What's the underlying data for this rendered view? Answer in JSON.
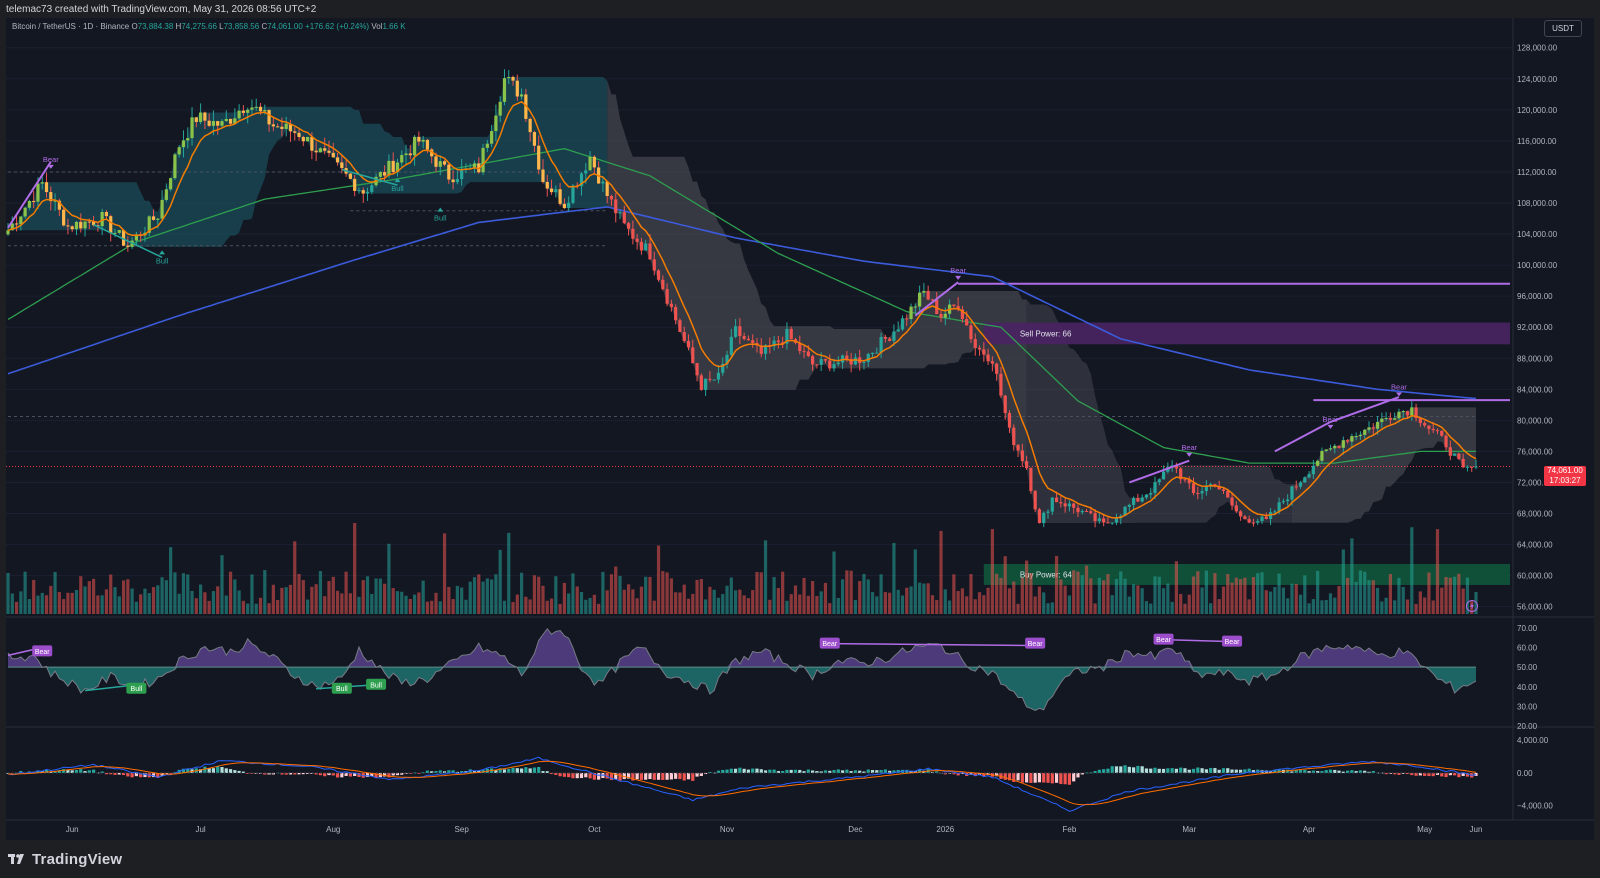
{
  "header": {
    "credit": "telemac73 created with TradingView.com, May 31, 2026 08:56 UTC+2",
    "symbol": "Bitcoin / TetherUS · 1D · Binance",
    "open_label": "O",
    "open": "73,884.38",
    "high_label": "H",
    "high": "74,275.66",
    "low_label": "L",
    "low": "73,858.56",
    "close_label": "C",
    "close": "74,061.00",
    "change": "+176.62 (+0.24%)",
    "volume_label": "Vol",
    "volume": "1.66 K",
    "currency": "USDT"
  },
  "price_tag": {
    "price": "74,061.00",
    "countdown": "17:03:27"
  },
  "brand": {
    "logo_text": "TradingView"
  },
  "colors": {
    "background": "#131722",
    "bull": "#26a69a",
    "bear": "#ef5350",
    "ema_fast": "#f57c00",
    "ma_mid": "#2e9e4f",
    "ma_slow": "#3b5bdb",
    "divergence": "#b06ce6",
    "cloud_bull": "#1b5e6b",
    "cloud_bear": "#4a4b55",
    "zone_sell": "#4a2363",
    "zone_buy": "#11573b"
  },
  "chart_data": [
    {
      "type": "candlestick",
      "title": "BTCUSDT 1D",
      "x_ticks": [
        "Jun",
        "Jul",
        "Aug",
        "Sep",
        "Oct",
        "Nov",
        "Dec",
        "2026",
        "Feb",
        "Mar",
        "Apr",
        "May",
        "Jun"
      ],
      "y_ticks": [
        "56,000.00",
        "60,000.00",
        "64,000.00",
        "68,000.00",
        "72,000.00",
        "76,000.00",
        "80,000.00",
        "84,000.00",
        "88,000.00",
        "92,000.00",
        "96,000.00",
        "100,000.00",
        "104,000.00",
        "108,000.00",
        "112,000.00",
        "116,000.00",
        "120,000.00",
        "124,000.00",
        "128,000.00"
      ],
      "ylim": [
        54800,
        130800
      ],
      "price_anchors": [
        {
          "t": 0,
          "p": 104500
        },
        {
          "t": 8,
          "p": 110500
        },
        {
          "t": 14,
          "p": 105000
        },
        {
          "t": 22,
          "p": 106000
        },
        {
          "t": 28,
          "p": 102500
        },
        {
          "t": 35,
          "p": 106500
        },
        {
          "t": 40,
          "p": 115500
        },
        {
          "t": 44,
          "p": 119000
        },
        {
          "t": 50,
          "p": 118000
        },
        {
          "t": 56,
          "p": 121000
        },
        {
          "t": 62,
          "p": 118000
        },
        {
          "t": 68,
          "p": 117000
        },
        {
          "t": 76,
          "p": 113000
        },
        {
          "t": 83,
          "p": 109500
        },
        {
          "t": 90,
          "p": 113000
        },
        {
          "t": 96,
          "p": 116000
        },
        {
          "t": 103,
          "p": 111500
        },
        {
          "t": 110,
          "p": 112500
        },
        {
          "t": 116,
          "p": 124000
        },
        {
          "t": 120,
          "p": 122000
        },
        {
          "t": 125,
          "p": 111000
        },
        {
          "t": 130,
          "p": 108000
        },
        {
          "t": 136,
          "p": 114000
        },
        {
          "t": 140,
          "p": 109000
        },
        {
          "t": 144,
          "p": 105000
        },
        {
          "t": 150,
          "p": 101500
        },
        {
          "t": 156,
          "p": 93000
        },
        {
          "t": 162,
          "p": 84500
        },
        {
          "t": 166,
          "p": 85500
        },
        {
          "t": 170,
          "p": 91500
        },
        {
          "t": 176,
          "p": 88500
        },
        {
          "t": 182,
          "p": 91000
        },
        {
          "t": 188,
          "p": 87200
        },
        {
          "t": 194,
          "p": 87500
        },
        {
          "t": 200,
          "p": 88000
        },
        {
          "t": 206,
          "p": 91000
        },
        {
          "t": 210,
          "p": 93500
        },
        {
          "t": 214,
          "p": 96500
        },
        {
          "t": 218,
          "p": 93500
        },
        {
          "t": 222,
          "p": 95000
        },
        {
          "t": 226,
          "p": 89500
        },
        {
          "t": 230,
          "p": 88000
        },
        {
          "t": 234,
          "p": 78500
        },
        {
          "t": 238,
          "p": 74000
        },
        {
          "t": 241,
          "p": 66500
        },
        {
          "t": 244,
          "p": 70000
        },
        {
          "t": 250,
          "p": 68500
        },
        {
          "t": 256,
          "p": 66500
        },
        {
          "t": 262,
          "p": 69000
        },
        {
          "t": 268,
          "p": 71500
        },
        {
          "t": 272,
          "p": 74500
        },
        {
          "t": 277,
          "p": 70500
        },
        {
          "t": 282,
          "p": 72000
        },
        {
          "t": 288,
          "p": 67500
        },
        {
          "t": 294,
          "p": 67000
        },
        {
          "t": 300,
          "p": 71000
        },
        {
          "t": 306,
          "p": 75000
        },
        {
          "t": 312,
          "p": 77500
        },
        {
          "t": 318,
          "p": 79000
        },
        {
          "t": 324,
          "p": 81000
        },
        {
          "t": 328,
          "p": 81500
        },
        {
          "t": 332,
          "p": 79000
        },
        {
          "t": 336,
          "p": 77000
        },
        {
          "t": 340,
          "p": 73500
        },
        {
          "t": 343,
          "p": 74061
        }
      ],
      "series": [
        {
          "name": "EMA (fast)",
          "color": "#f57c00"
        },
        {
          "name": "MA (mid)",
          "color": "#2e9e4f"
        },
        {
          "name": "MA (slow)",
          "color": "#3b5bdb"
        }
      ],
      "slow_ma": [
        {
          "t": 0,
          "p": 86000
        },
        {
          "t": 40,
          "p": 93500
        },
        {
          "t": 80,
          "p": 100500
        },
        {
          "t": 110,
          "p": 105500
        },
        {
          "t": 140,
          "p": 107500
        },
        {
          "t": 170,
          "p": 103500
        },
        {
          "t": 200,
          "p": 100500
        },
        {
          "t": 230,
          "p": 98500
        },
        {
          "t": 260,
          "p": 90500
        },
        {
          "t": 290,
          "p": 86500
        },
        {
          "t": 320,
          "p": 84000
        },
        {
          "t": 343,
          "p": 82800
        }
      ],
      "mid_ma": [
        {
          "t": 0,
          "p": 93000
        },
        {
          "t": 30,
          "p": 103000
        },
        {
          "t": 60,
          "p": 108500
        },
        {
          "t": 90,
          "p": 111000
        },
        {
          "t": 130,
          "p": 115000
        },
        {
          "t": 150,
          "p": 111500
        },
        {
          "t": 180,
          "p": 101500
        },
        {
          "t": 210,
          "p": 94000
        },
        {
          "t": 232,
          "p": 92000
        },
        {
          "t": 250,
          "p": 82500
        },
        {
          "t": 270,
          "p": 76500
        },
        {
          "t": 290,
          "p": 74500
        },
        {
          "t": 310,
          "p": 74500
        },
        {
          "t": 330,
          "p": 76000
        },
        {
          "t": 343,
          "p": 76000
        }
      ],
      "annotations": [
        {
          "text": "Bear",
          "t": 10,
          "p": 113300
        },
        {
          "text": "Bull",
          "t": 36,
          "p": 101000
        },
        {
          "text": "Bull",
          "t": 91,
          "p": 110300
        },
        {
          "text": "Bull",
          "t": 101,
          "p": 106500
        },
        {
          "text": "Bear",
          "t": 222,
          "p": 99000
        },
        {
          "text": "Bear",
          "t": 276,
          "p": 76200
        },
        {
          "text": "Bear",
          "t": 309,
          "p": 79800
        },
        {
          "text": "Bear",
          "t": 325,
          "p": 84000
        }
      ],
      "zones": [
        {
          "label": "Sell Power: 66",
          "from_t": 228,
          "low": 89800,
          "high": 92600
        },
        {
          "label": "Buy Power: 64",
          "from_t": 228,
          "low": 58800,
          "high": 61500
        }
      ],
      "levels": [
        {
          "p": 97600,
          "from_t": 222,
          "color": "#b06ce6"
        },
        {
          "p": 82600,
          "from_t": 305,
          "color": "#b06ce6"
        }
      ]
    },
    {
      "type": "area",
      "title": "RSI",
      "y_ticks": [
        "20.00",
        "30.00",
        "40.00",
        "50.00",
        "60.00",
        "70.00"
      ],
      "ylim": [
        20,
        73
      ],
      "midline": 50,
      "rsi_anchors": [
        {
          "t": 0,
          "v": 55
        },
        {
          "t": 6,
          "v": 56
        },
        {
          "t": 10,
          "v": 47
        },
        {
          "t": 18,
          "v": 38
        },
        {
          "t": 24,
          "v": 45
        },
        {
          "t": 30,
          "v": 40
        },
        {
          "t": 35,
          "v": 44
        },
        {
          "t": 40,
          "v": 53
        },
        {
          "t": 46,
          "v": 60
        },
        {
          "t": 52,
          "v": 58
        },
        {
          "t": 56,
          "v": 62
        },
        {
          "t": 62,
          "v": 55
        },
        {
          "t": 66,
          "v": 47
        },
        {
          "t": 72,
          "v": 40
        },
        {
          "t": 78,
          "v": 44
        },
        {
          "t": 82,
          "v": 59
        },
        {
          "t": 88,
          "v": 47
        },
        {
          "t": 92,
          "v": 42
        },
        {
          "t": 98,
          "v": 44
        },
        {
          "t": 104,
          "v": 52
        },
        {
          "t": 110,
          "v": 60
        },
        {
          "t": 116,
          "v": 55
        },
        {
          "t": 120,
          "v": 46
        },
        {
          "t": 126,
          "v": 69
        },
        {
          "t": 130,
          "v": 68
        },
        {
          "t": 134,
          "v": 50
        },
        {
          "t": 138,
          "v": 41
        },
        {
          "t": 144,
          "v": 54
        },
        {
          "t": 148,
          "v": 60
        },
        {
          "t": 154,
          "v": 47
        },
        {
          "t": 160,
          "v": 42
        },
        {
          "t": 164,
          "v": 38
        },
        {
          "t": 170,
          "v": 53
        },
        {
          "t": 176,
          "v": 58
        },
        {
          "t": 182,
          "v": 52
        },
        {
          "t": 188,
          "v": 46
        },
        {
          "t": 194,
          "v": 53
        },
        {
          "t": 200,
          "v": 52
        },
        {
          "t": 206,
          "v": 55
        },
        {
          "t": 212,
          "v": 60
        },
        {
          "t": 218,
          "v": 61
        },
        {
          "t": 224,
          "v": 52
        },
        {
          "t": 230,
          "v": 47
        },
        {
          "t": 236,
          "v": 34
        },
        {
          "t": 241,
          "v": 27
        },
        {
          "t": 246,
          "v": 42
        },
        {
          "t": 250,
          "v": 48
        },
        {
          "t": 256,
          "v": 50
        },
        {
          "t": 262,
          "v": 58
        },
        {
          "t": 268,
          "v": 55
        },
        {
          "t": 272,
          "v": 60
        },
        {
          "t": 278,
          "v": 46
        },
        {
          "t": 284,
          "v": 47
        },
        {
          "t": 290,
          "v": 43
        },
        {
          "t": 296,
          "v": 46
        },
        {
          "t": 302,
          "v": 55
        },
        {
          "t": 308,
          "v": 60
        },
        {
          "t": 314,
          "v": 61
        },
        {
          "t": 320,
          "v": 56
        },
        {
          "t": 326,
          "v": 58
        },
        {
          "t": 330,
          "v": 52
        },
        {
          "t": 334,
          "v": 44
        },
        {
          "t": 338,
          "v": 39
        },
        {
          "t": 343,
          "v": 43
        }
      ],
      "annotations": [
        {
          "text": "Bear",
          "t": 8,
          "v": 58
        },
        {
          "text": "Bull",
          "t": 30,
          "v": 39
        },
        {
          "text": "Bull",
          "t": 78,
          "v": 39
        },
        {
          "text": "Bull",
          "t": 86,
          "v": 41
        },
        {
          "text": "Bear",
          "t": 192,
          "v": 62
        },
        {
          "text": "Bear",
          "t": 240,
          "v": 62
        },
        {
          "text": "Bear",
          "t": 270,
          "v": 64
        },
        {
          "text": "Bear",
          "t": 286,
          "v": 63
        }
      ]
    },
    {
      "type": "bar",
      "title": "MACD",
      "y_ticks": [
        "4,000.00",
        "0.00",
        "−4,000.00"
      ],
      "ylim": [
        -5500,
        5000
      ],
      "macd_anchors": [
        {
          "t": 0,
          "v": -200
        },
        {
          "t": 20,
          "v": 1000
        },
        {
          "t": 35,
          "v": -500
        },
        {
          "t": 50,
          "v": 1500
        },
        {
          "t": 70,
          "v": 800
        },
        {
          "t": 90,
          "v": -800
        },
        {
          "t": 110,
          "v": 300
        },
        {
          "t": 124,
          "v": 1800
        },
        {
          "t": 140,
          "v": -500
        },
        {
          "t": 160,
          "v": -3300
        },
        {
          "t": 172,
          "v": -1800
        },
        {
          "t": 200,
          "v": -400
        },
        {
          "t": 215,
          "v": 500
        },
        {
          "t": 230,
          "v": -500
        },
        {
          "t": 248,
          "v": -4600
        },
        {
          "t": 262,
          "v": -2200
        },
        {
          "t": 290,
          "v": 100
        },
        {
          "t": 318,
          "v": 1400
        },
        {
          "t": 330,
          "v": 800
        },
        {
          "t": 343,
          "v": -300
        }
      ]
    }
  ]
}
